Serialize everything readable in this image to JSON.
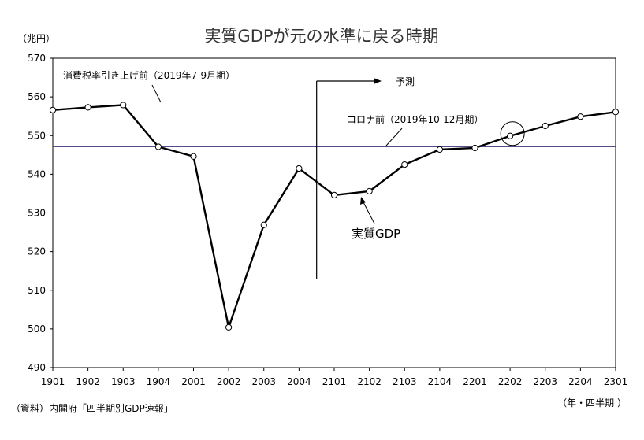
{
  "chart_data": {
    "type": "line",
    "title": "実質GDPが元の水準に戻る時期",
    "ylabel": "（兆円）",
    "xlabel": "（年・四半期 ）",
    "source": "（資料）内閣府「四半期別GDP速報」",
    "ylim": [
      490,
      570
    ],
    "yticks": [
      490,
      500,
      510,
      520,
      530,
      540,
      550,
      560,
      570
    ],
    "categories": [
      "1901",
      "1902",
      "1903",
      "1904",
      "2001",
      "2002",
      "2003",
      "2004",
      "2101",
      "2102",
      "2103",
      "2104",
      "2201",
      "2202",
      "2203",
      "2204",
      "2301"
    ],
    "series": [
      {
        "name": "実質GDP",
        "values": [
          556.6,
          557.3,
          557.9,
          547.1,
          544.6,
          500.4,
          526.9,
          541.5,
          534.6,
          535.6,
          542.5,
          546.4,
          546.8,
          549.9,
          552.5,
          554.9,
          556.1
        ]
      }
    ],
    "reference_lines": [
      {
        "label": "消費税率引き上げ前（2019年7-9月期）",
        "value": 557.9,
        "color": "#c0302a"
      },
      {
        "label": "コロナ前（2019年10-12月期）",
        "value": 547.1,
        "color": "#5a4a8a"
      }
    ],
    "forecast": {
      "label": "予測",
      "start_after": "2004"
    },
    "highlight": {
      "category": "2202"
    },
    "grid": false
  }
}
